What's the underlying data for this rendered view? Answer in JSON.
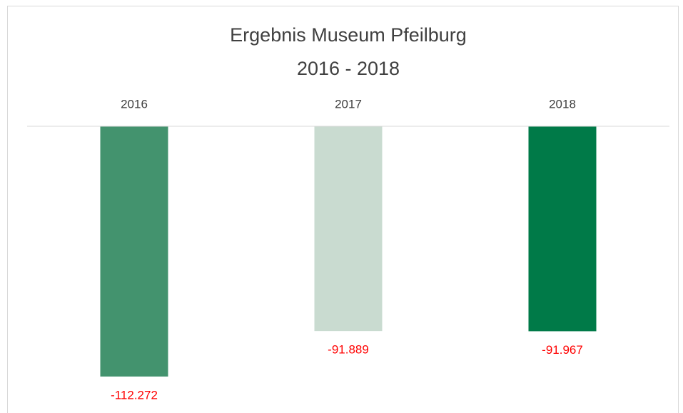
{
  "chart_data": {
    "type": "bar",
    "title": "Ergebnis Museum Pfeilburg",
    "subtitle": "2016 - 2018",
    "categories": [
      "2016",
      "2017",
      "2018"
    ],
    "values": [
      -112272,
      -91889,
      -91967
    ],
    "value_labels": [
      "-112.272",
      "-91.889",
      "-91.967"
    ],
    "colors": [
      "#43936e",
      "#c9dbd0",
      "#007a48"
    ],
    "label_color": "#ff0000",
    "ylim": [
      -120000,
      0
    ]
  }
}
